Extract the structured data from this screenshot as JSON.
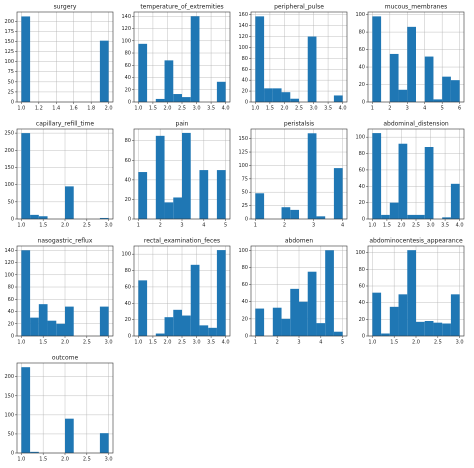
{
  "chart_data": [
    {
      "type": "histogram",
      "title": "surgery",
      "bins": [
        1,
        1.1,
        1.2,
        1.3,
        1.4,
        1.5,
        1.6,
        1.7,
        1.8,
        1.9,
        2
      ],
      "counts": [
        212,
        0,
        0,
        0,
        0,
        0,
        0,
        0,
        0,
        152
      ],
      "xlim": [
        0.95,
        2.05
      ],
      "ylim": [
        0,
        223
      ],
      "xticks": [
        {
          "value": 1,
          "label": "1.0"
        },
        {
          "value": 1.2,
          "label": "1.2"
        },
        {
          "value": 1.4,
          "label": "1.4"
        },
        {
          "value": 1.6,
          "label": "1.6"
        },
        {
          "value": 1.8,
          "label": "1.8"
        },
        {
          "value": 2,
          "label": "2.0"
        }
      ],
      "yticks": [
        0,
        25,
        50,
        75,
        100,
        125,
        150,
        175,
        200
      ],
      "color": "#1f77b4",
      "grid": true
    },
    {
      "type": "histogram",
      "title": "temperature_of_extremities",
      "bins": [
        1,
        1.3,
        1.6,
        1.9,
        2.2,
        2.5,
        2.8,
        3.1,
        3.4,
        3.7,
        4
      ],
      "counts": [
        95,
        0,
        5,
        68,
        13,
        8,
        140,
        0,
        0,
        33
      ],
      "xlim": [
        0.85,
        4.15
      ],
      "ylim": [
        0,
        147
      ],
      "xticks": [
        {
          "value": 1,
          "label": "1.0"
        },
        {
          "value": 1.5,
          "label": "1.5"
        },
        {
          "value": 2,
          "label": "2.0"
        },
        {
          "value": 2.5,
          "label": "2.5"
        },
        {
          "value": 3,
          "label": "3.0"
        },
        {
          "value": 3.5,
          "label": "3.5"
        },
        {
          "value": 4,
          "label": "4.0"
        }
      ],
      "yticks": [
        0,
        20,
        40,
        60,
        80,
        100,
        120,
        140
      ],
      "color": "#1f77b4",
      "grid": true
    },
    {
      "type": "histogram",
      "title": "peripheral_pulse",
      "bins": [
        1,
        1.3,
        1.6,
        1.9,
        2.2,
        2.5,
        2.8,
        3.1,
        3.4,
        3.7,
        4
      ],
      "counts": [
        157,
        25,
        25,
        18,
        6,
        0,
        120,
        0,
        0,
        12
      ],
      "xlim": [
        0.85,
        4.15
      ],
      "ylim": [
        0,
        165
      ],
      "xticks": [
        {
          "value": 1,
          "label": "1.0"
        },
        {
          "value": 1.5,
          "label": "1.5"
        },
        {
          "value": 2,
          "label": "2.0"
        },
        {
          "value": 2.5,
          "label": "2.5"
        },
        {
          "value": 3,
          "label": "3.0"
        },
        {
          "value": 3.5,
          "label": "3.5"
        },
        {
          "value": 4,
          "label": "4.0"
        }
      ],
      "yticks": [
        0,
        20,
        40,
        60,
        80,
        100,
        120,
        140,
        160
      ],
      "color": "#1f77b4",
      "grid": true
    },
    {
      "type": "histogram",
      "title": "mucous_membranes",
      "bins": [
        1,
        1.5,
        2,
        2.5,
        3,
        3.5,
        4,
        4.5,
        5,
        5.5,
        6
      ],
      "counts": [
        98,
        0,
        55,
        14,
        86,
        0,
        52,
        3,
        29,
        25
      ],
      "xlim": [
        0.75,
        6.25
      ],
      "ylim": [
        0,
        103
      ],
      "xticks": [
        1,
        2,
        3,
        4,
        5,
        6
      ],
      "yticks": [
        0,
        20,
        40,
        60,
        80,
        100
      ],
      "color": "#1f77b4",
      "grid": true
    },
    {
      "type": "histogram",
      "title": "capillary_refill_time",
      "bins": [
        1,
        1.2,
        1.4,
        1.6,
        1.8,
        2,
        2.2,
        2.4,
        2.6,
        2.8,
        3
      ],
      "counts": [
        250,
        12,
        8,
        0,
        0,
        95,
        0,
        0,
        0,
        3
      ],
      "xlim": [
        0.9,
        3.1
      ],
      "ylim": [
        0,
        262
      ],
      "xticks": [
        {
          "value": 1,
          "label": "1.0"
        },
        {
          "value": 1.5,
          "label": "1.5"
        },
        {
          "value": 2,
          "label": "2.0"
        },
        {
          "value": 2.5,
          "label": "2.5"
        },
        {
          "value": 3,
          "label": "3.0"
        }
      ],
      "yticks": [
        0,
        50,
        100,
        150,
        200,
        250
      ],
      "color": "#1f77b4",
      "grid": true
    },
    {
      "type": "histogram",
      "title": "pain",
      "bins": [
        1,
        1.4,
        1.8,
        2.2,
        2.6,
        3,
        3.4,
        3.8,
        4.2,
        4.6,
        5
      ],
      "counts": [
        48,
        0,
        85,
        17,
        22,
        88,
        0,
        50,
        0,
        50
      ],
      "xlim": [
        0.8,
        5.2
      ],
      "ylim": [
        0,
        92
      ],
      "xticks": [
        1,
        2,
        3,
        4,
        5
      ],
      "yticks": [
        0,
        20,
        40,
        60,
        80
      ],
      "color": "#1f77b4",
      "grid": true
    },
    {
      "type": "histogram",
      "title": "peristalsis",
      "bins": [
        1,
        1.3,
        1.6,
        1.9,
        2.2,
        2.5,
        2.8,
        3.1,
        3.4,
        3.7,
        4
      ],
      "counts": [
        48,
        0,
        0,
        22,
        17,
        0,
        160,
        5,
        0,
        95
      ],
      "xlim": [
        0.85,
        4.15
      ],
      "ylim": [
        0,
        168
      ],
      "xticks": [
        1,
        2,
        3,
        4
      ],
      "yticks": [
        0,
        25,
        50,
        75,
        100,
        125,
        150
      ],
      "color": "#1f77b4",
      "grid": true
    },
    {
      "type": "histogram",
      "title": "abdominal_distension",
      "bins": [
        1,
        1.3,
        1.6,
        1.9,
        2.2,
        2.5,
        2.8,
        3.1,
        3.4,
        3.7,
        4
      ],
      "counts": [
        105,
        5,
        20,
        92,
        5,
        5,
        88,
        0,
        2,
        43
      ],
      "xlim": [
        0.85,
        4.15
      ],
      "ylim": [
        0,
        110
      ],
      "xticks": [
        {
          "value": 1,
          "label": "1.0"
        },
        {
          "value": 1.5,
          "label": "1.5"
        },
        {
          "value": 2,
          "label": "2.0"
        },
        {
          "value": 2.5,
          "label": "2.5"
        },
        {
          "value": 3,
          "label": "3.0"
        },
        {
          "value": 3.5,
          "label": "3.5"
        },
        {
          "value": 4,
          "label": "4.0"
        }
      ],
      "yticks": [
        0,
        20,
        40,
        60,
        80,
        100
      ],
      "color": "#1f77b4",
      "grid": true
    },
    {
      "type": "histogram",
      "title": "nasogastric_reflux",
      "bins": [
        1,
        1.2,
        1.4,
        1.6,
        1.8,
        2,
        2.2,
        2.4,
        2.6,
        2.8,
        3
      ],
      "counts": [
        140,
        30,
        52,
        25,
        20,
        48,
        0,
        0,
        0,
        48
      ],
      "xlim": [
        0.9,
        3.1
      ],
      "ylim": [
        0,
        147
      ],
      "xticks": [
        {
          "value": 1,
          "label": "1.0"
        },
        {
          "value": 1.5,
          "label": "1.5"
        },
        {
          "value": 2,
          "label": "2.0"
        },
        {
          "value": 2.5,
          "label": "2.5"
        },
        {
          "value": 3,
          "label": "3.0"
        }
      ],
      "yticks": [
        0,
        20,
        40,
        60,
        80,
        100,
        120,
        140
      ],
      "color": "#1f77b4",
      "grid": true
    },
    {
      "type": "histogram",
      "title": "rectal_examination_feces",
      "bins": [
        1,
        1.3,
        1.6,
        1.9,
        2.2,
        2.5,
        2.8,
        3.1,
        3.4,
        3.7,
        4
      ],
      "counts": [
        68,
        0,
        3,
        23,
        32,
        25,
        87,
        13,
        10,
        105
      ],
      "xlim": [
        0.85,
        4.15
      ],
      "ylim": [
        0,
        110
      ],
      "xticks": [
        {
          "value": 1,
          "label": "1.0"
        },
        {
          "value": 1.5,
          "label": "1.5"
        },
        {
          "value": 2,
          "label": "2.0"
        },
        {
          "value": 2.5,
          "label": "2.5"
        },
        {
          "value": 3,
          "label": "3.0"
        },
        {
          "value": 3.5,
          "label": "3.5"
        },
        {
          "value": 4,
          "label": "4.0"
        }
      ],
      "yticks": [
        0,
        20,
        40,
        60,
        80,
        100
      ],
      "color": "#1f77b4",
      "grid": true
    },
    {
      "type": "histogram",
      "title": "abdomen",
      "bins": [
        1,
        1.4,
        1.8,
        2.2,
        2.6,
        3,
        3.4,
        3.8,
        4.2,
        4.6,
        5
      ],
      "counts": [
        32,
        0,
        33,
        20,
        55,
        40,
        75,
        15,
        100,
        5
      ],
      "xlim": [
        0.8,
        5.2
      ],
      "ylim": [
        0,
        105
      ],
      "xticks": [
        1,
        2,
        3,
        4,
        5
      ],
      "yticks": [
        0,
        20,
        40,
        60,
        80,
        100
      ],
      "color": "#1f77b4",
      "grid": true
    },
    {
      "type": "histogram",
      "title": "abdominocentesis_appearance",
      "bins": [
        1,
        1.2,
        1.4,
        1.6,
        1.8,
        2,
        2.2,
        2.4,
        2.6,
        2.8,
        3
      ],
      "counts": [
        52,
        3,
        35,
        50,
        103,
        17,
        18,
        16,
        15,
        50
      ],
      "xlim": [
        0.9,
        3.1
      ],
      "ylim": [
        0,
        108
      ],
      "xticks": [
        {
          "value": 1,
          "label": "1.0"
        },
        {
          "value": 1.5,
          "label": "1.5"
        },
        {
          "value": 2,
          "label": "2.0"
        },
        {
          "value": 2.5,
          "label": "2.5"
        },
        {
          "value": 3,
          "label": "3.0"
        }
      ],
      "yticks": [
        0,
        20,
        40,
        60,
        80,
        100
      ],
      "color": "#1f77b4",
      "grid": true
    },
    {
      "type": "histogram",
      "title": "outcome",
      "bins": [
        1,
        1.2,
        1.4,
        1.6,
        1.8,
        2,
        2.2,
        2.4,
        2.6,
        2.8,
        3
      ],
      "counts": [
        225,
        3,
        0,
        0,
        0,
        90,
        0,
        0,
        0,
        52
      ],
      "xlim": [
        0.9,
        3.1
      ],
      "ylim": [
        0,
        236
      ],
      "xticks": [
        {
          "value": 1,
          "label": "1.0"
        },
        {
          "value": 1.5,
          "label": "1.5"
        },
        {
          "value": 2,
          "label": "2.0"
        },
        {
          "value": 2.5,
          "label": "2.5"
        },
        {
          "value": 3,
          "label": "3.0"
        }
      ],
      "yticks": [
        0,
        50,
        100,
        150,
        200
      ],
      "color": "#1f77b4",
      "grid": true
    }
  ]
}
